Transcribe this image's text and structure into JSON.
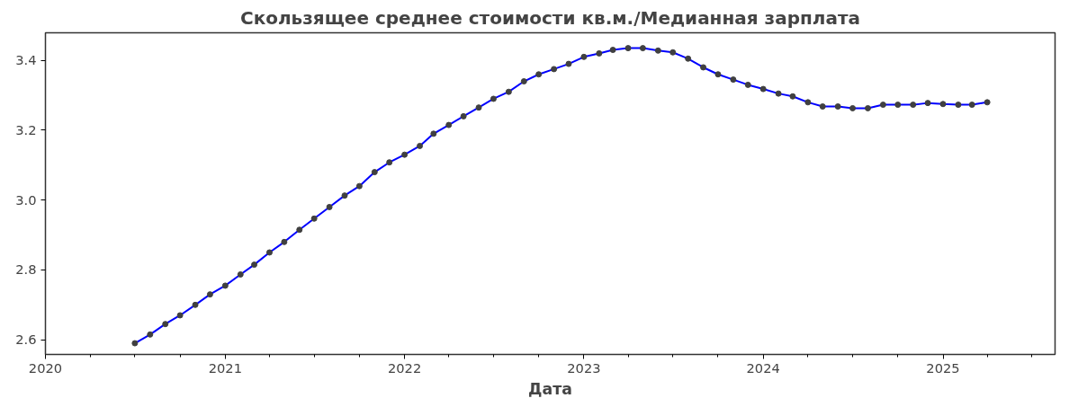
{
  "chart_data": {
    "type": "line",
    "title": "Скользящее среднее стоимости кв.м./Медианная зарплата",
    "xlabel": "Дата",
    "x": [
      "2020-07",
      "2020-08",
      "2020-09",
      "2020-10",
      "2020-11",
      "2020-12",
      "2021-01",
      "2021-02",
      "2021-03",
      "2021-04",
      "2021-05",
      "2021-06",
      "2021-07",
      "2021-08",
      "2021-09",
      "2021-10",
      "2021-11",
      "2021-12",
      "2022-01",
      "2022-02",
      "2022-03",
      "2022-04",
      "2022-05",
      "2022-06",
      "2022-07",
      "2022-08",
      "2022-09",
      "2022-10",
      "2022-11",
      "2022-12",
      "2023-01",
      "2023-02",
      "2023-03",
      "2023-04",
      "2023-05",
      "2023-06",
      "2023-07",
      "2023-08",
      "2023-09",
      "2023-10",
      "2023-11",
      "2023-12",
      "2024-01",
      "2024-02",
      "2024-03",
      "2024-04",
      "2024-05",
      "2024-06",
      "2024-07",
      "2024-08",
      "2024-09",
      "2024-10",
      "2024-11",
      "2024-12",
      "2025-01",
      "2025-02",
      "2025-03",
      "2025-04"
    ],
    "series": [
      {
        "color": "#0000ff",
        "values": [
          2.59,
          2.615,
          2.645,
          2.67,
          2.7,
          2.73,
          2.755,
          2.787,
          2.815,
          2.85,
          2.88,
          2.915,
          2.947,
          2.98,
          3.013,
          3.04,
          3.08,
          3.108,
          3.13,
          3.155,
          3.19,
          3.215,
          3.24,
          3.265,
          3.29,
          3.31,
          3.34,
          3.36,
          3.375,
          3.39,
          3.41,
          3.42,
          3.43,
          3.435,
          3.435,
          3.428,
          3.423,
          3.405,
          3.38,
          3.36,
          3.345,
          3.33,
          3.318,
          3.305,
          3.297,
          3.28,
          3.268,
          3.268,
          3.263,
          3.263,
          3.273,
          3.273,
          3.273,
          3.278,
          3.275,
          3.273,
          3.273,
          3.28
        ]
      }
    ],
    "xlim": [
      "2020-01-01",
      "2025-08-17"
    ],
    "xticks": [
      {
        "value": "2020-01-01",
        "label": "2020"
      },
      {
        "value": "2020-04-01",
        "label": null
      },
      {
        "value": "2020-07-01",
        "label": null
      },
      {
        "value": "2020-10-01",
        "label": null
      },
      {
        "value": "2021-01-01",
        "label": "2021"
      },
      {
        "value": "2021-04-01",
        "label": null
      },
      {
        "value": "2021-07-01",
        "label": null
      },
      {
        "value": "2021-10-01",
        "label": null
      },
      {
        "value": "2022-01-01",
        "label": "2022"
      },
      {
        "value": "2022-04-01",
        "label": null
      },
      {
        "value": "2022-07-01",
        "label": null
      },
      {
        "value": "2022-10-01",
        "label": null
      },
      {
        "value": "2023-01-01",
        "label": "2023"
      },
      {
        "value": "2023-04-01",
        "label": null
      },
      {
        "value": "2023-07-01",
        "label": null
      },
      {
        "value": "2023-10-01",
        "label": null
      },
      {
        "value": "2024-01-01",
        "label": "2024"
      },
      {
        "value": "2024-04-01",
        "label": null
      },
      {
        "value": "2024-07-01",
        "label": null
      },
      {
        "value": "2024-10-01",
        "label": null
      },
      {
        "value": "2025-01-01",
        "label": "2025"
      },
      {
        "value": "2025-04-01",
        "label": null
      },
      {
        "value": "2025-07-01",
        "label": null
      }
    ],
    "ylim": [
      2.558,
      3.479
    ],
    "yticks": [
      2.6,
      2.8,
      {
        "value": 3.0,
        "label": "3.0"
      },
      3.2,
      3.4
    ],
    "marker": "circle",
    "line_style": "solid",
    "grid": false
  }
}
